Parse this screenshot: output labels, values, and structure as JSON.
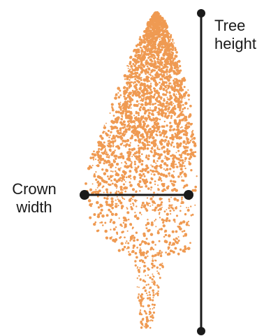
{
  "labels": {
    "tree_height": [
      "Tree",
      "height"
    ],
    "crown_width": [
      "Crown",
      "width"
    ]
  },
  "colors": {
    "points": "#ef9a52",
    "lines": "#1a1a1a",
    "text": "#1a1a1a"
  }
}
